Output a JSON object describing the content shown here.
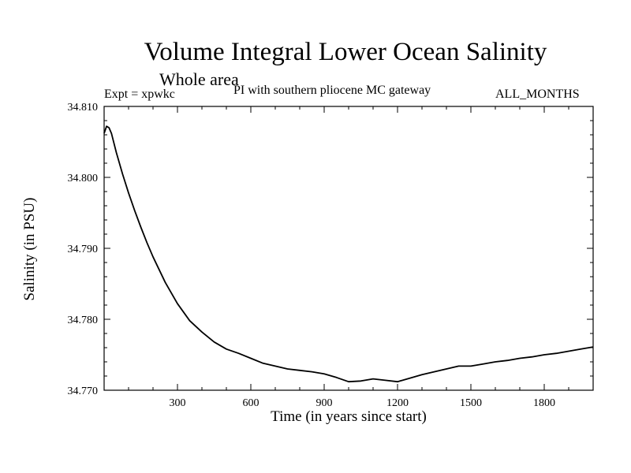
{
  "chart_data": {
    "type": "line",
    "title": "Volume Integral Lower Ocean Salinity",
    "subtitle": "Whole area",
    "annotations": {
      "left": "Expt = xpwkc",
      "center": "PI with southern pliocene MC gateway",
      "right": "ALL_MONTHS"
    },
    "xlabel": "Time (in years since start)",
    "ylabel": "Salinity (in PSU)",
    "xlim": [
      0,
      2000
    ],
    "ylim": [
      34.77,
      34.81
    ],
    "x_ticks": [
      300,
      600,
      900,
      1200,
      1500,
      1800
    ],
    "x_tick_labels": [
      "300",
      "600",
      "900",
      "1200",
      "1500",
      "1800"
    ],
    "y_ticks": [
      34.77,
      34.78,
      34.79,
      34.8,
      34.81
    ],
    "y_tick_labels": [
      "34.770",
      "34.780",
      "34.790",
      "34.800",
      "34.810"
    ],
    "grid": false,
    "series": [
      {
        "name": "xpwkc",
        "color": "#000000",
        "x": [
          0,
          10,
          20,
          30,
          50,
          75,
          100,
          125,
          150,
          175,
          200,
          250,
          300,
          350,
          400,
          450,
          500,
          550,
          600,
          650,
          700,
          750,
          800,
          850,
          900,
          950,
          1000,
          1050,
          1100,
          1150,
          1200,
          1250,
          1300,
          1350,
          1400,
          1450,
          1500,
          1550,
          1600,
          1650,
          1700,
          1750,
          1800,
          1850,
          1900,
          1950,
          2000
        ],
        "y": [
          34.8062,
          34.8072,
          34.807,
          34.8062,
          34.8035,
          34.8005,
          34.7978,
          34.7953,
          34.793,
          34.7908,
          34.7888,
          34.7852,
          34.7822,
          34.7798,
          34.7782,
          34.7768,
          34.7758,
          34.7752,
          34.7745,
          34.7738,
          34.7734,
          34.773,
          34.7728,
          34.7726,
          34.7723,
          34.7718,
          34.7712,
          34.7713,
          34.7716,
          34.7714,
          34.7712,
          34.7717,
          34.7722,
          34.7726,
          34.773,
          34.7734,
          34.7734,
          34.7737,
          34.774,
          34.7742,
          34.7745,
          34.7747,
          34.775,
          34.7752,
          34.7755,
          34.7758,
          34.7761
        ]
      }
    ]
  }
}
